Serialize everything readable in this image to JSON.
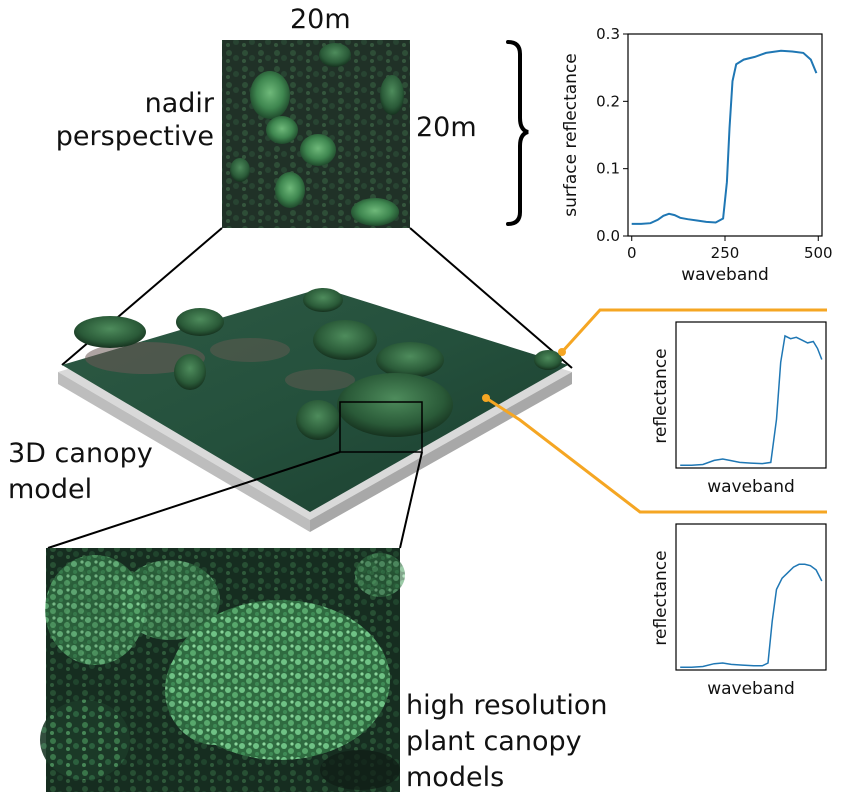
{
  "labels": {
    "width_20m": "20m",
    "height_20m": "20m",
    "nadir_line1": "nadir",
    "nadir_line2": "perspective",
    "canopy_line1": "3D canopy",
    "canopy_line2": "model",
    "hires_line1": "high resolution",
    "hires_line2": "plant canopy",
    "hires_line3": "models"
  },
  "colors": {
    "spectrum_line": "#1f77b4",
    "highlight_line": "#f5a623",
    "connector_line": "#000000",
    "vegetation_dark": "#1f3a2a",
    "vegetation_light": "#4f9a60"
  },
  "chart_data": [
    {
      "type": "line",
      "title": "",
      "xlabel": "waveband",
      "ylabel": "surface reflectance",
      "xlim": [
        -10,
        510
      ],
      "ylim": [
        0,
        0.3
      ],
      "xticks": [
        "0",
        "250",
        "500"
      ],
      "yticks": [
        "0.0",
        "0.1",
        "0.2",
        "0.3"
      ],
      "grid": false,
      "x": [
        0,
        25,
        50,
        70,
        85,
        100,
        115,
        130,
        150,
        175,
        200,
        225,
        245,
        255,
        262,
        270,
        280,
        300,
        330,
        360,
        400,
        430,
        460,
        480,
        495
      ],
      "y": [
        0.018,
        0.018,
        0.019,
        0.024,
        0.03,
        0.033,
        0.031,
        0.027,
        0.025,
        0.023,
        0.021,
        0.02,
        0.026,
        0.08,
        0.16,
        0.23,
        0.255,
        0.262,
        0.266,
        0.272,
        0.275,
        0.274,
        0.272,
        0.262,
        0.242
      ]
    },
    {
      "type": "line",
      "title": "",
      "xlabel": "waveband",
      "ylabel": "reflectance",
      "grid": false,
      "x": [
        0,
        8,
        16,
        24,
        30,
        35,
        42,
        50,
        58,
        64,
        68,
        71,
        74,
        78,
        82,
        86,
        90,
        94,
        97,
        100
      ],
      "y": [
        0.02,
        0.02,
        0.025,
        0.055,
        0.065,
        0.055,
        0.04,
        0.035,
        0.032,
        0.04,
        0.35,
        0.76,
        0.95,
        0.93,
        0.94,
        0.92,
        0.9,
        0.91,
        0.86,
        0.78
      ]
    },
    {
      "type": "line",
      "title": "",
      "xlabel": "waveband",
      "ylabel": "reflectance",
      "grid": false,
      "x": [
        0,
        8,
        16,
        24,
        30,
        36,
        44,
        52,
        58,
        62,
        65,
        68,
        72,
        76,
        80,
        84,
        88,
        92,
        96,
        100
      ],
      "y": [
        0.02,
        0.02,
        0.025,
        0.045,
        0.05,
        0.04,
        0.035,
        0.03,
        0.03,
        0.05,
        0.35,
        0.58,
        0.66,
        0.7,
        0.74,
        0.76,
        0.76,
        0.75,
        0.72,
        0.64
      ]
    }
  ]
}
